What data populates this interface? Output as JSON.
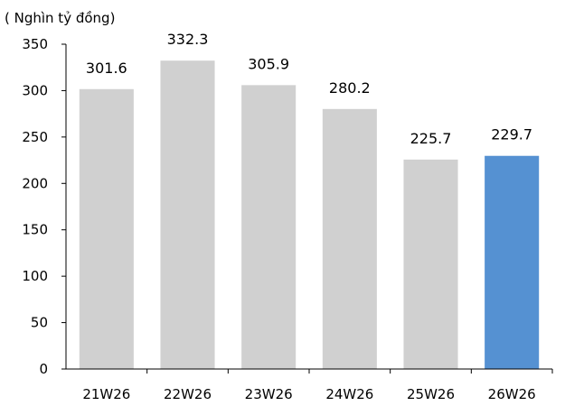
{
  "chart_data": {
    "type": "bar",
    "title": "",
    "unit_label": "( Nghìn tỷ đồng)",
    "xlabel": "",
    "ylabel": "",
    "categories": [
      "21W26",
      "22W26",
      "23W26",
      "24W26",
      "25W26",
      "26W26"
    ],
    "values": [
      301.6,
      332.3,
      305.9,
      280.2,
      225.7,
      229.7
    ],
    "value_labels": [
      "301.6",
      "332.3",
      "305.9",
      "280.2",
      "225.7",
      "229.7"
    ],
    "ylim": [
      0,
      350
    ],
    "yticks": [
      0,
      50,
      100,
      150,
      200,
      250,
      300,
      350
    ],
    "grid": false,
    "legend": "none",
    "colors": {
      "default_bar": "#d0d0d0",
      "highlight_bar": "#5591d2",
      "highlight_category": "26W26",
      "axis": "#000000",
      "text": "#000000"
    }
  }
}
